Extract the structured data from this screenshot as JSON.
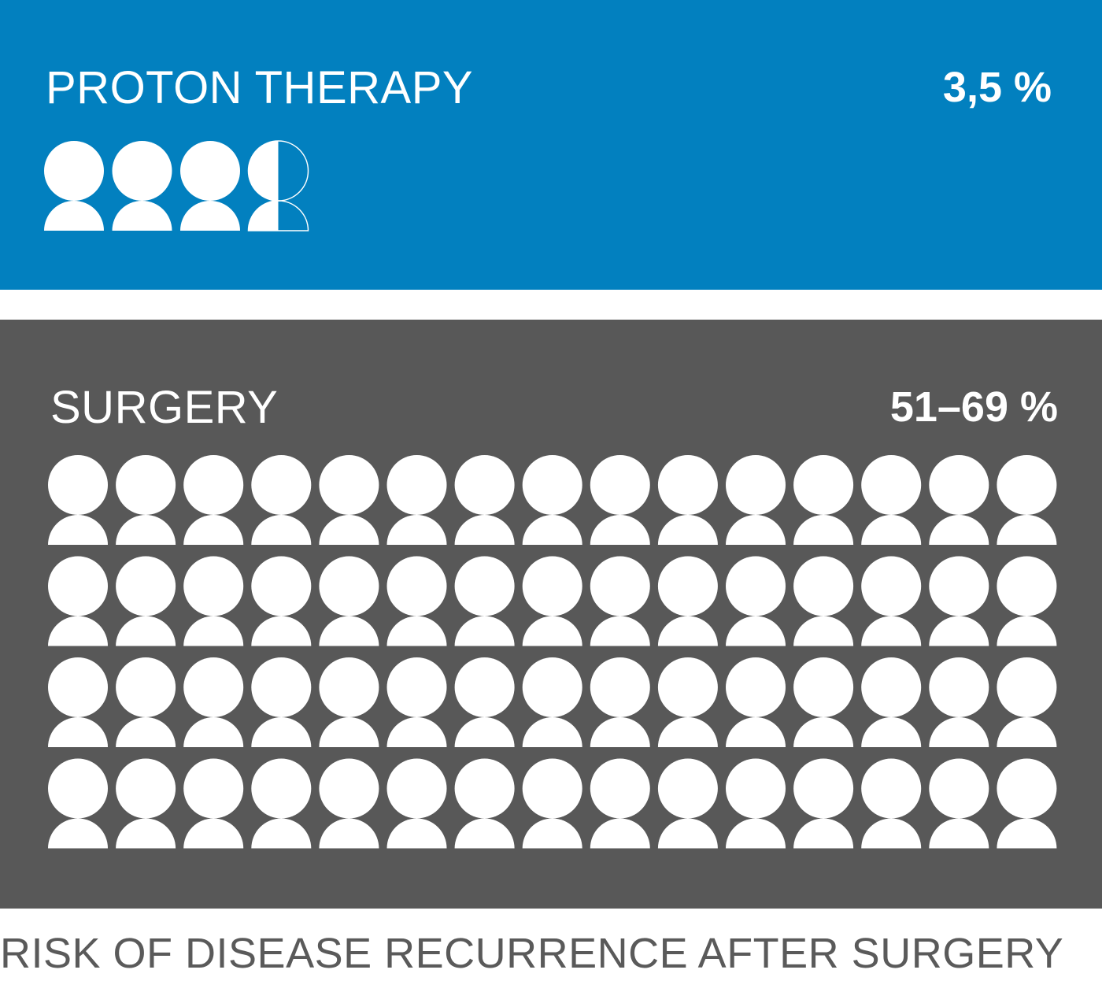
{
  "chart_data": [
    {
      "type": "pictogram",
      "title": "PROTON THERAPY",
      "value_label": "3,5 %",
      "icons_filled": 3.5,
      "icons_total": 4,
      "background_color": "#0280BF"
    },
    {
      "type": "pictogram",
      "title": "SURGERY",
      "value_label": "51–69 %",
      "icons_filled": 60,
      "icons_total": 60,
      "grid": {
        "rows": 4,
        "columns": 15
      },
      "background_color": "#585858"
    }
  ],
  "caption": "RISK OF DISEASE RECURRENCE AFTER SURGERY",
  "colors": {
    "icon": "#ffffff",
    "text": "#ffffff",
    "caption": "#5a5a5a"
  },
  "icon_name": "person-icon"
}
